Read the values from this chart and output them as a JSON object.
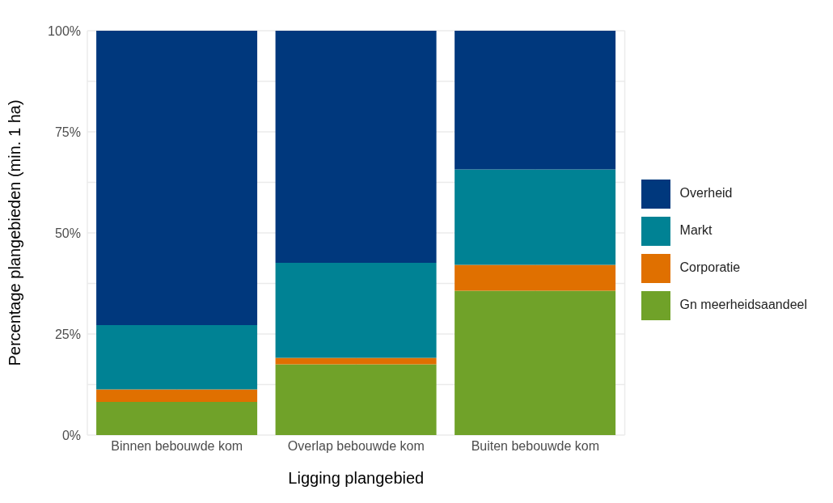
{
  "chart_data": {
    "type": "bar",
    "stacked": true,
    "xlabel": "Ligging plangebied",
    "ylabel": "Percentage plangebieden (min. 1 ha)",
    "categories": [
      "Binnen bebouwde kom",
      "Overlap bebouwde kom",
      "Buiten bebouwde kom"
    ],
    "series": [
      {
        "name": "Gn meerheidsaandeel",
        "color": "#70a229",
        "values": [
          8.2,
          17.5,
          35.7
        ]
      },
      {
        "name": "Corporatie",
        "color": "#e07000",
        "values": [
          3.1,
          1.6,
          6.4
        ]
      },
      {
        "name": "Markt",
        "color": "#008294",
        "values": [
          15.9,
          23.5,
          23.6
        ]
      },
      {
        "name": "Overheid",
        "color": "#00387d",
        "values": [
          72.8,
          57.4,
          34.3
        ]
      }
    ],
    "ylim": [
      0,
      100
    ],
    "yticks": [
      {
        "value": 0,
        "label": "0%"
      },
      {
        "value": 25,
        "label": "25%"
      },
      {
        "value": 50,
        "label": "50%"
      },
      {
        "value": 75,
        "label": "75%"
      },
      {
        "value": 100,
        "label": "100%"
      }
    ],
    "grid": true,
    "legend": "right"
  }
}
